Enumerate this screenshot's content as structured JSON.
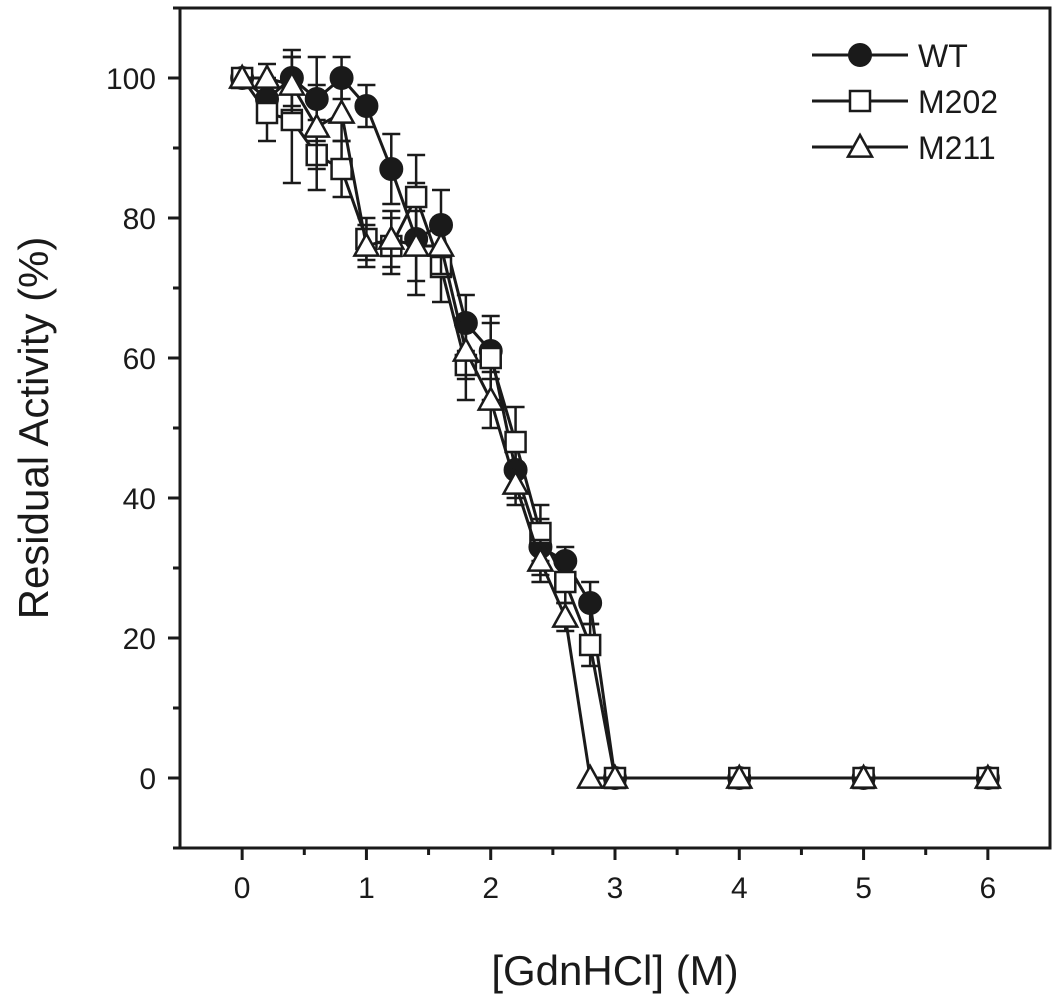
{
  "chart_data": {
    "type": "line",
    "title": "",
    "xlabel": "[GdnHCl] (M)",
    "ylabel": "Residual Activity (%)",
    "xlim": [
      -0.5,
      6.5
    ],
    "ylim": [
      -10,
      110
    ],
    "xticks": [
      0,
      1,
      2,
      3,
      4,
      5,
      6
    ],
    "yticks": [
      0,
      20,
      40,
      60,
      80,
      100
    ],
    "legend_position": "top-right",
    "colors": {
      "ink": "#1a1a1a",
      "fill_open": "#ffffff"
    },
    "series": [
      {
        "name": "WT",
        "marker": "circle-filled",
        "x": [
          0,
          0.2,
          0.4,
          0.6,
          0.8,
          1.0,
          1.2,
          1.4,
          1.6,
          1.8,
          2.0,
          2.2,
          2.4,
          2.6,
          2.8,
          3.0,
          4.0,
          5.0,
          6.0
        ],
        "y": [
          100,
          97,
          100,
          97,
          100,
          96,
          87,
          77,
          79,
          65,
          61,
          44,
          33,
          31,
          25,
          0,
          0,
          0,
          0
        ],
        "err": [
          0,
          3,
          4,
          6,
          3,
          3,
          5,
          8,
          5,
          4,
          4,
          4,
          4,
          2,
          3,
          0,
          0,
          0,
          0
        ]
      },
      {
        "name": "M202",
        "marker": "square-open",
        "x": [
          0,
          0.2,
          0.4,
          0.6,
          0.8,
          1.0,
          1.2,
          1.4,
          1.6,
          1.8,
          2.0,
          2.2,
          2.4,
          2.6,
          2.8,
          3.0,
          4.0,
          5.0,
          6.0
        ],
        "y": [
          100,
          95,
          94,
          89,
          87,
          77,
          76,
          83,
          73,
          59,
          60,
          48,
          35,
          28,
          19,
          0,
          0,
          0,
          0
        ],
        "err": [
          0,
          4,
          9,
          5,
          4,
          3,
          4,
          6,
          5,
          5,
          6,
          5,
          4,
          3,
          3,
          0,
          0,
          0,
          0
        ]
      },
      {
        "name": "M211",
        "marker": "triangle-open",
        "x": [
          0,
          0.2,
          0.4,
          0.6,
          0.8,
          1.0,
          1.2,
          1.4,
          1.6,
          1.8,
          2.0,
          2.2,
          2.4,
          2.6,
          2.8,
          3.0,
          4.0,
          5.0,
          6.0
        ],
        "y": [
          100,
          100,
          99,
          93,
          95,
          76,
          77,
          76,
          76,
          61,
          54,
          42,
          31,
          23,
          0,
          0,
          0,
          0,
          0
        ],
        "err": [
          0,
          2,
          4,
          6,
          4,
          3,
          4,
          5,
          4,
          4,
          4,
          3,
          3,
          2,
          0,
          0,
          0,
          0,
          0
        ]
      }
    ]
  }
}
